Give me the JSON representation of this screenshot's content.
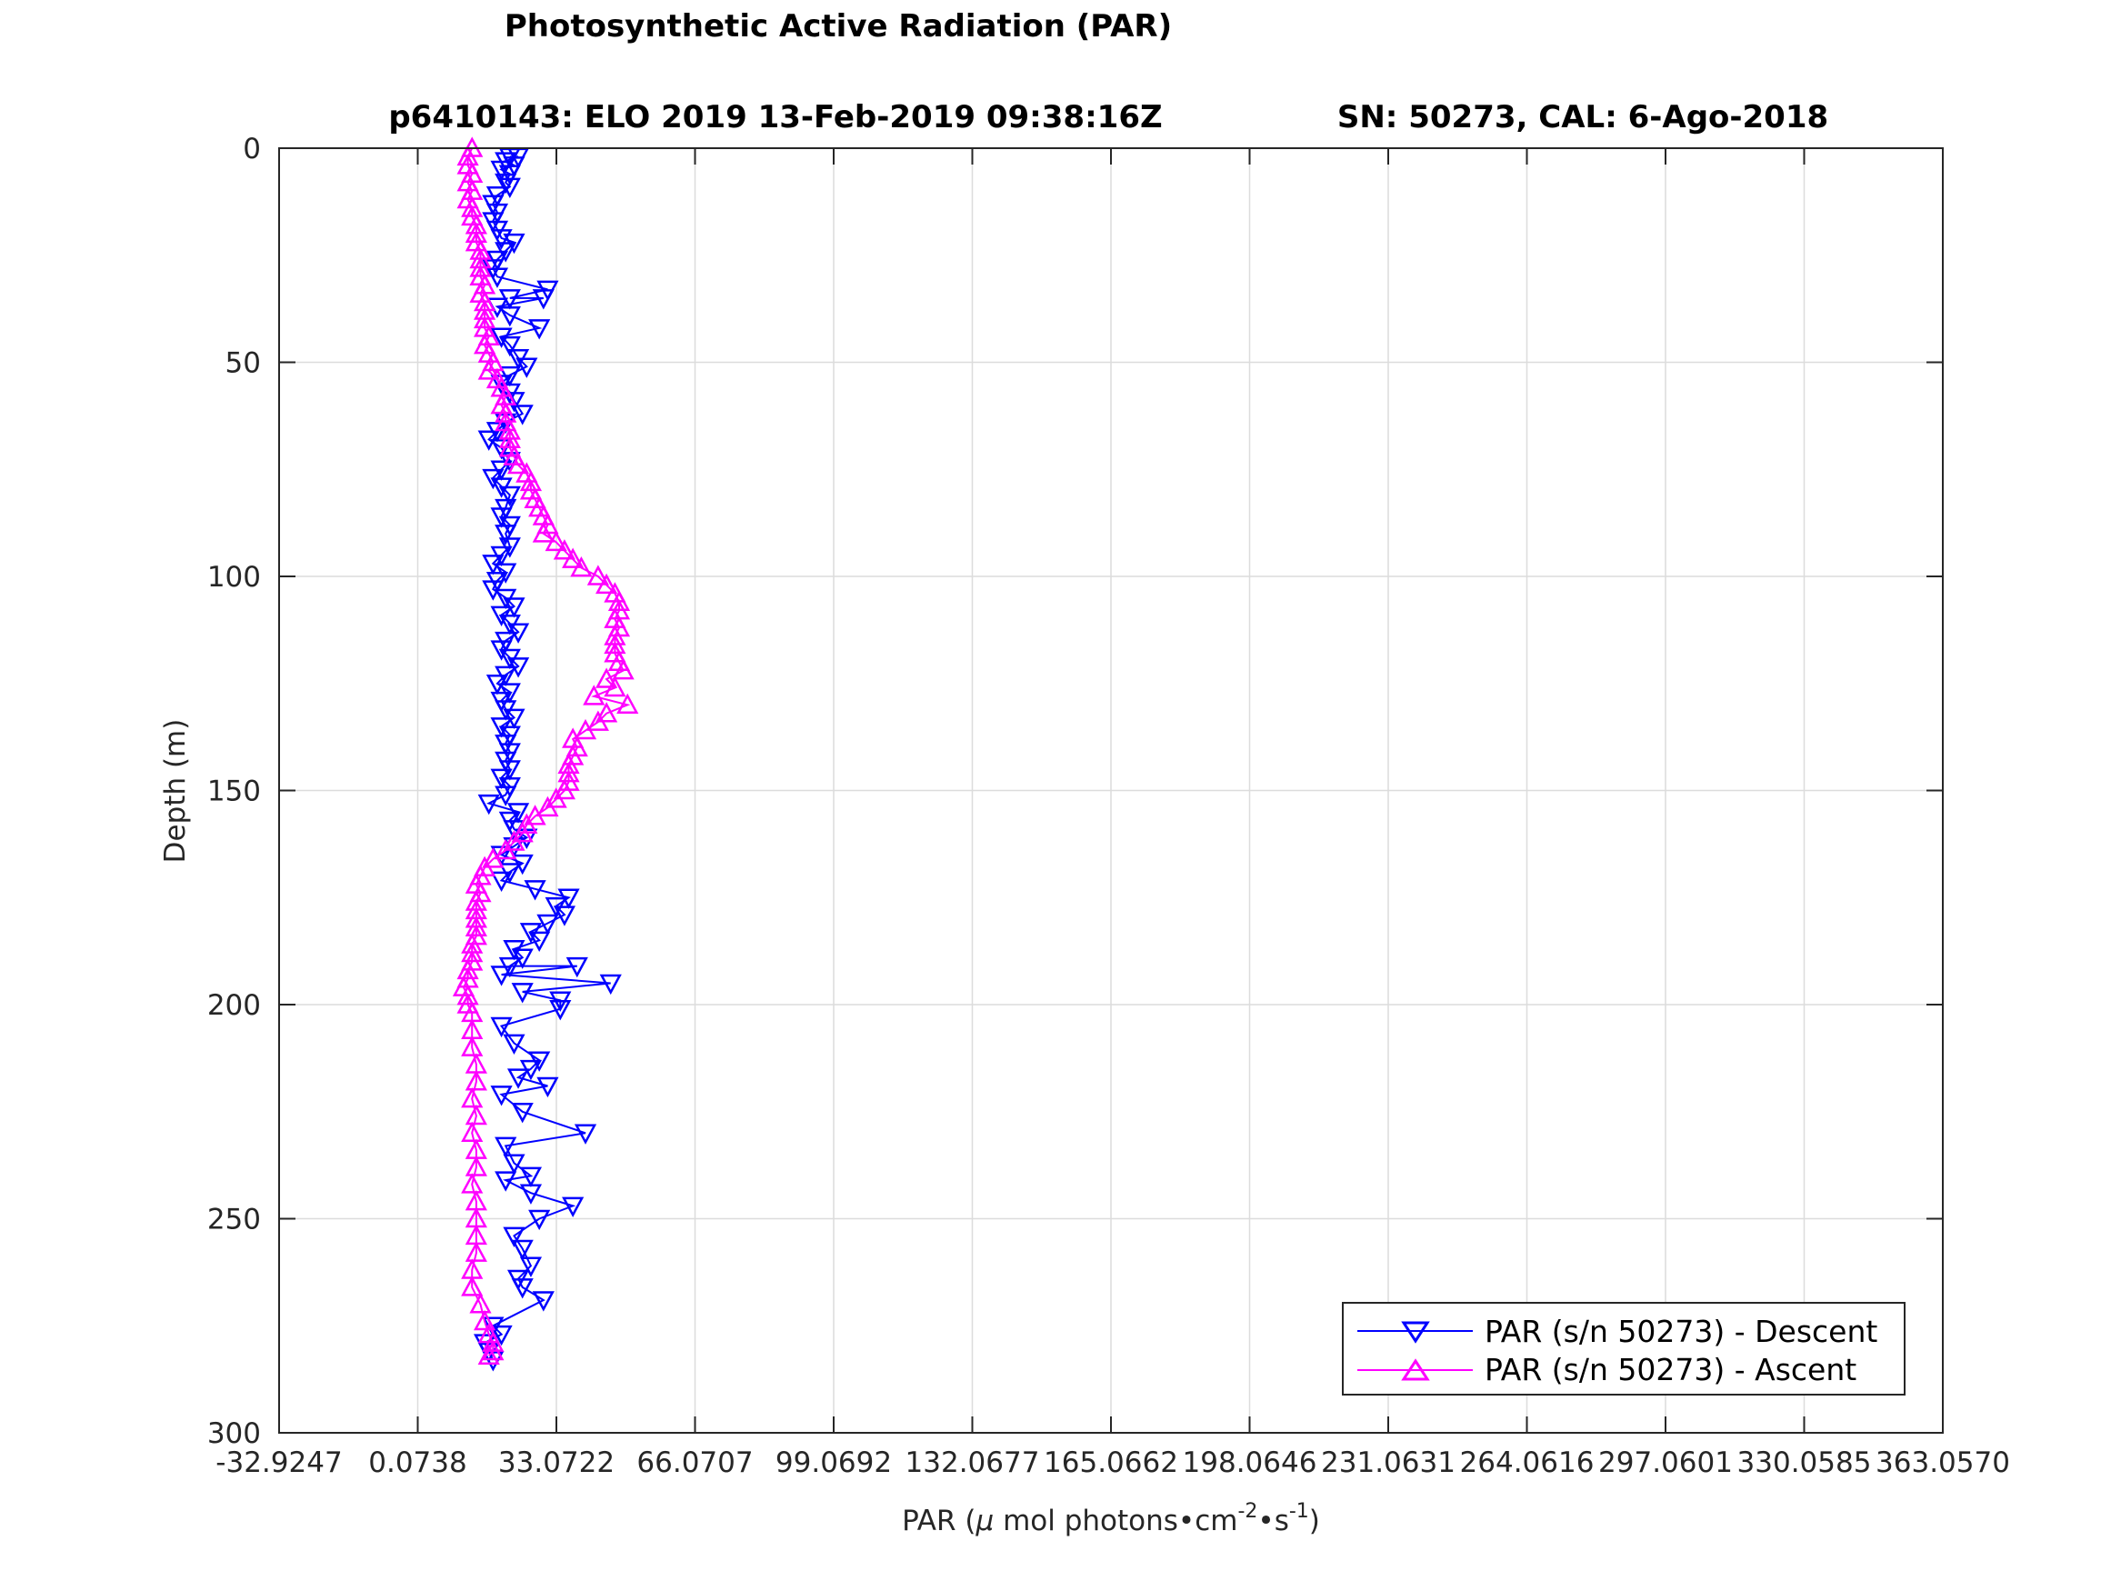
{
  "chart_data": {
    "type": "line",
    "title": "Photosynthetic Active Radiation (PAR)",
    "subtitle_left": "p6410143: ELO 2019 13-Feb-2019 09:38:16Z",
    "subtitle_right": "SN: 50273, CAL: 6-Ago-2018",
    "xlabel": {
      "prefix": "PAR (",
      "mu": "μ",
      "mid": " mol photons•cm",
      "sup1": "-2",
      "mid2": "•s",
      "sup2": "-1",
      "suffix": ")"
    },
    "ylabel": "Depth (m)",
    "xlim": [
      -32.9247,
      363.057
    ],
    "ylim": [
      0,
      300
    ],
    "y_reversed": true,
    "grid": true,
    "legend_position": "bottom-right",
    "x_ticks": [
      -32.9247,
      0.0738,
      33.0722,
      66.0707,
      99.0692,
      132.0677,
      165.0662,
      198.0646,
      231.0631,
      264.0616,
      297.0601,
      330.0585,
      363.057
    ],
    "x_tick_labels": [
      "-32.9247",
      "0.0738",
      "33.0722",
      "66.0707",
      "99.0692",
      "132.0677",
      "165.0662",
      "198.0646",
      "231.0631",
      "264.0616",
      "297.0601",
      "330.0585",
      "363.0570"
    ],
    "y_ticks": [
      0,
      50,
      100,
      150,
      200,
      250,
      300
    ],
    "y_tick_labels": [
      "0",
      "50",
      "100",
      "150",
      "200",
      "250",
      "300"
    ],
    "series": [
      {
        "name": "PAR (s/n 50273) - Descent",
        "color": "#0000ff",
        "marker": "triangle-down",
        "points": [
          [
            22,
            2
          ],
          [
            24,
            2
          ],
          [
            21,
            3
          ],
          [
            23,
            4
          ],
          [
            20,
            5
          ],
          [
            22,
            6
          ],
          [
            21,
            8
          ],
          [
            22,
            9
          ],
          [
            19,
            11
          ],
          [
            18,
            13
          ],
          [
            19,
            15
          ],
          [
            18,
            17
          ],
          [
            19,
            19
          ],
          [
            20,
            21
          ],
          [
            23,
            22
          ],
          [
            21,
            24
          ],
          [
            19,
            26
          ],
          [
            18,
            28
          ],
          [
            19,
            30
          ],
          [
            31,
            33
          ],
          [
            22,
            35
          ],
          [
            30,
            35
          ],
          [
            19,
            37
          ],
          [
            22,
            39
          ],
          [
            29,
            42
          ],
          [
            20,
            44
          ],
          [
            22,
            46
          ],
          [
            24,
            49
          ],
          [
            26,
            51
          ],
          [
            22,
            53
          ],
          [
            20,
            55
          ],
          [
            22,
            57
          ],
          [
            23,
            59
          ],
          [
            25,
            62
          ],
          [
            21,
            64
          ],
          [
            19,
            66
          ],
          [
            17,
            68
          ],
          [
            20,
            70
          ],
          [
            22,
            73
          ],
          [
            20,
            75
          ],
          [
            18,
            77
          ],
          [
            20,
            79
          ],
          [
            22,
            81
          ],
          [
            21,
            84
          ],
          [
            20,
            86
          ],
          [
            22,
            88
          ],
          [
            21,
            90
          ],
          [
            22,
            93
          ],
          [
            20,
            95
          ],
          [
            18,
            97
          ],
          [
            21,
            99
          ],
          [
            19,
            101
          ],
          [
            18,
            103
          ],
          [
            21,
            105
          ],
          [
            23,
            107
          ],
          [
            20,
            109
          ],
          [
            22,
            111
          ],
          [
            24,
            113
          ],
          [
            21,
            115
          ],
          [
            20,
            117
          ],
          [
            22,
            119
          ],
          [
            24,
            121
          ],
          [
            21,
            123
          ],
          [
            19,
            125
          ],
          [
            22,
            127
          ],
          [
            20,
            129
          ],
          [
            21,
            131
          ],
          [
            23,
            133
          ],
          [
            20,
            135
          ],
          [
            22,
            137
          ],
          [
            21,
            139
          ],
          [
            22,
            141
          ],
          [
            21,
            143
          ],
          [
            22,
            145
          ],
          [
            20,
            147
          ],
          [
            22,
            149
          ],
          [
            21,
            151
          ],
          [
            17,
            153
          ],
          [
            24,
            155
          ],
          [
            22,
            157
          ],
          [
            23,
            159
          ],
          [
            26,
            161
          ],
          [
            23,
            163
          ],
          [
            20,
            165
          ],
          [
            25,
            167
          ],
          [
            22,
            169
          ],
          [
            20,
            171
          ],
          [
            28,
            173
          ],
          [
            36,
            175
          ],
          [
            33,
            177
          ],
          [
            35,
            179
          ],
          [
            31,
            181
          ],
          [
            27,
            183
          ],
          [
            29,
            185
          ],
          [
            23,
            187
          ],
          [
            25,
            189
          ],
          [
            22,
            191
          ],
          [
            38,
            191
          ],
          [
            20,
            193
          ],
          [
            46,
            195
          ],
          [
            25,
            197
          ],
          [
            34,
            199
          ],
          [
            34,
            201
          ],
          [
            20,
            205
          ],
          [
            23,
            209
          ],
          [
            29,
            213
          ],
          [
            27,
            215
          ],
          [
            24,
            217
          ],
          [
            31,
            219
          ],
          [
            20,
            221
          ],
          [
            25,
            225
          ],
          [
            40,
            230
          ],
          [
            21,
            233
          ],
          [
            23,
            237
          ],
          [
            27,
            240
          ],
          [
            21,
            241
          ],
          [
            27,
            244
          ],
          [
            37,
            247
          ],
          [
            29,
            250
          ],
          [
            23,
            254
          ],
          [
            25,
            257
          ],
          [
            27,
            261
          ],
          [
            24,
            264
          ],
          [
            25,
            266
          ],
          [
            30,
            269
          ],
          [
            18,
            275
          ],
          [
            20,
            277
          ],
          [
            16,
            279
          ],
          [
            17,
            281
          ],
          [
            18,
            283
          ]
        ]
      },
      {
        "name": "PAR (s/n 50273) - Ascent",
        "color": "#ff00ff",
        "marker": "triangle-up",
        "points": [
          [
            13,
            0
          ],
          [
            12,
            2
          ],
          [
            12,
            4
          ],
          [
            13,
            6
          ],
          [
            12,
            8
          ],
          [
            13,
            10
          ],
          [
            12,
            12
          ],
          [
            13,
            14
          ],
          [
            13,
            16
          ],
          [
            14,
            18
          ],
          [
            14,
            20
          ],
          [
            14,
            22
          ],
          [
            15,
            24
          ],
          [
            15,
            26
          ],
          [
            15,
            28
          ],
          [
            15,
            30
          ],
          [
            16,
            32
          ],
          [
            15,
            34
          ],
          [
            16,
            36
          ],
          [
            16,
            38
          ],
          [
            16,
            40
          ],
          [
            16,
            42
          ],
          [
            17,
            44
          ],
          [
            16,
            46
          ],
          [
            17,
            48
          ],
          [
            18,
            50
          ],
          [
            17,
            52
          ],
          [
            19,
            54
          ],
          [
            20,
            56
          ],
          [
            21,
            58
          ],
          [
            20,
            60
          ],
          [
            21,
            62
          ],
          [
            21,
            64
          ],
          [
            22,
            66
          ],
          [
            22,
            68
          ],
          [
            22,
            70
          ],
          [
            23,
            72
          ],
          [
            24,
            74
          ],
          [
            26,
            76
          ],
          [
            27,
            78
          ],
          [
            27,
            80
          ],
          [
            28,
            82
          ],
          [
            29,
            84
          ],
          [
            30,
            86
          ],
          [
            31,
            88
          ],
          [
            30,
            90
          ],
          [
            33,
            92
          ],
          [
            35,
            94
          ],
          [
            37,
            96
          ],
          [
            39,
            98
          ],
          [
            43,
            100
          ],
          [
            45,
            102
          ],
          [
            47,
            104
          ],
          [
            48,
            106
          ],
          [
            48,
            108
          ],
          [
            47,
            110
          ],
          [
            48,
            112
          ],
          [
            47,
            114
          ],
          [
            47,
            116
          ],
          [
            47,
            118
          ],
          [
            48,
            120
          ],
          [
            49,
            122
          ],
          [
            45,
            124
          ],
          [
            47,
            126
          ],
          [
            42,
            128
          ],
          [
            50,
            130
          ],
          [
            45,
            132
          ],
          [
            43,
            134
          ],
          [
            40,
            136
          ],
          [
            37,
            138
          ],
          [
            38,
            140
          ],
          [
            37,
            142
          ],
          [
            36,
            144
          ],
          [
            36,
            146
          ],
          [
            36,
            148
          ],
          [
            35,
            150
          ],
          [
            33,
            152
          ],
          [
            31,
            154
          ],
          [
            28,
            156
          ],
          [
            26,
            158
          ],
          [
            25,
            160
          ],
          [
            23,
            162
          ],
          [
            21,
            164
          ],
          [
            18,
            166
          ],
          [
            16,
            168
          ],
          [
            15,
            170
          ],
          [
            14,
            172
          ],
          [
            15,
            174
          ],
          [
            14,
            176
          ],
          [
            14,
            178
          ],
          [
            14,
            180
          ],
          [
            14,
            182
          ],
          [
            14,
            184
          ],
          [
            13,
            186
          ],
          [
            13,
            188
          ],
          [
            13,
            190
          ],
          [
            12,
            192
          ],
          [
            12,
            194
          ],
          [
            11,
            196
          ],
          [
            12,
            198
          ],
          [
            12,
            200
          ],
          [
            13,
            202
          ],
          [
            13,
            206
          ],
          [
            13,
            210
          ],
          [
            14,
            214
          ],
          [
            14,
            218
          ],
          [
            13,
            222
          ],
          [
            14,
            226
          ],
          [
            13,
            230
          ],
          [
            14,
            234
          ],
          [
            14,
            238
          ],
          [
            13,
            242
          ],
          [
            14,
            246
          ],
          [
            14,
            250
          ],
          [
            14,
            254
          ],
          [
            14,
            258
          ],
          [
            13,
            262
          ],
          [
            13,
            266
          ],
          [
            15,
            270
          ],
          [
            16,
            274
          ],
          [
            17,
            277
          ],
          [
            18,
            279
          ],
          [
            18,
            281
          ],
          [
            17,
            282
          ]
        ]
      }
    ]
  }
}
